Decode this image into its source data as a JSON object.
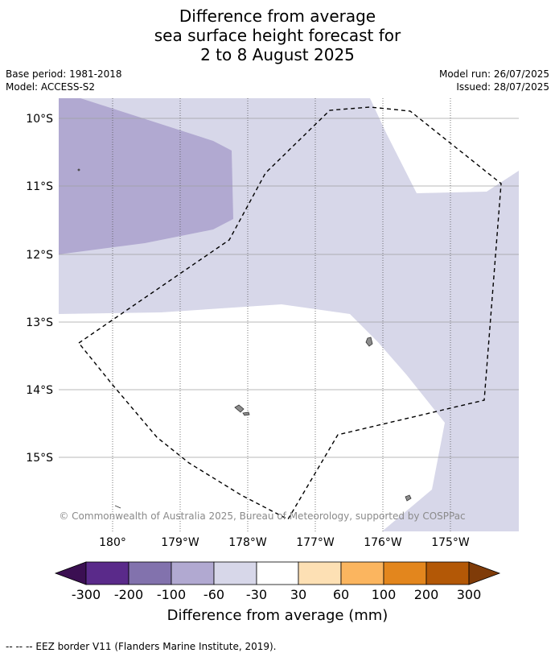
{
  "title": {
    "line1": "Difference from average",
    "line2": "sea surface height forecast for",
    "line3": "2 to 8 August 2025"
  },
  "meta": {
    "base_period": "Base period: 1981-2018",
    "model": "Model: ACCESS-S2",
    "model_run": "Model run: 26/07/2025",
    "issued": "Issued: 28/07/2025"
  },
  "map": {
    "lat_labels": [
      "10°S",
      "11°S",
      "12°S",
      "13°S",
      "14°S",
      "15°S"
    ],
    "lon_labels": [
      "180°",
      "179°W",
      "178°W",
      "177°W",
      "176°W",
      "175°W"
    ],
    "copyright": "© Commonwealth of Australia 2025, Bureau of Meteorology, supported by COSPPac"
  },
  "legend": {
    "title": "Difference from average (mm)",
    "ticks": [
      "-300",
      "-200",
      "-100",
      "-60",
      "-30",
      "30",
      "60",
      "100",
      "200",
      "300"
    ],
    "colors": [
      "#3b0f52",
      "#5a2a8a",
      "#8272ad",
      "#b1a9d1",
      "#d7d7e9",
      "#ffffff",
      "#fde0b4",
      "#fbb55f",
      "#e3861d",
      "#b35806",
      "#7f3b08"
    ]
  },
  "footer": {
    "eez_note": "-- -- -- EEZ border V11 (Flanders Marine Institute, 2019)."
  }
}
